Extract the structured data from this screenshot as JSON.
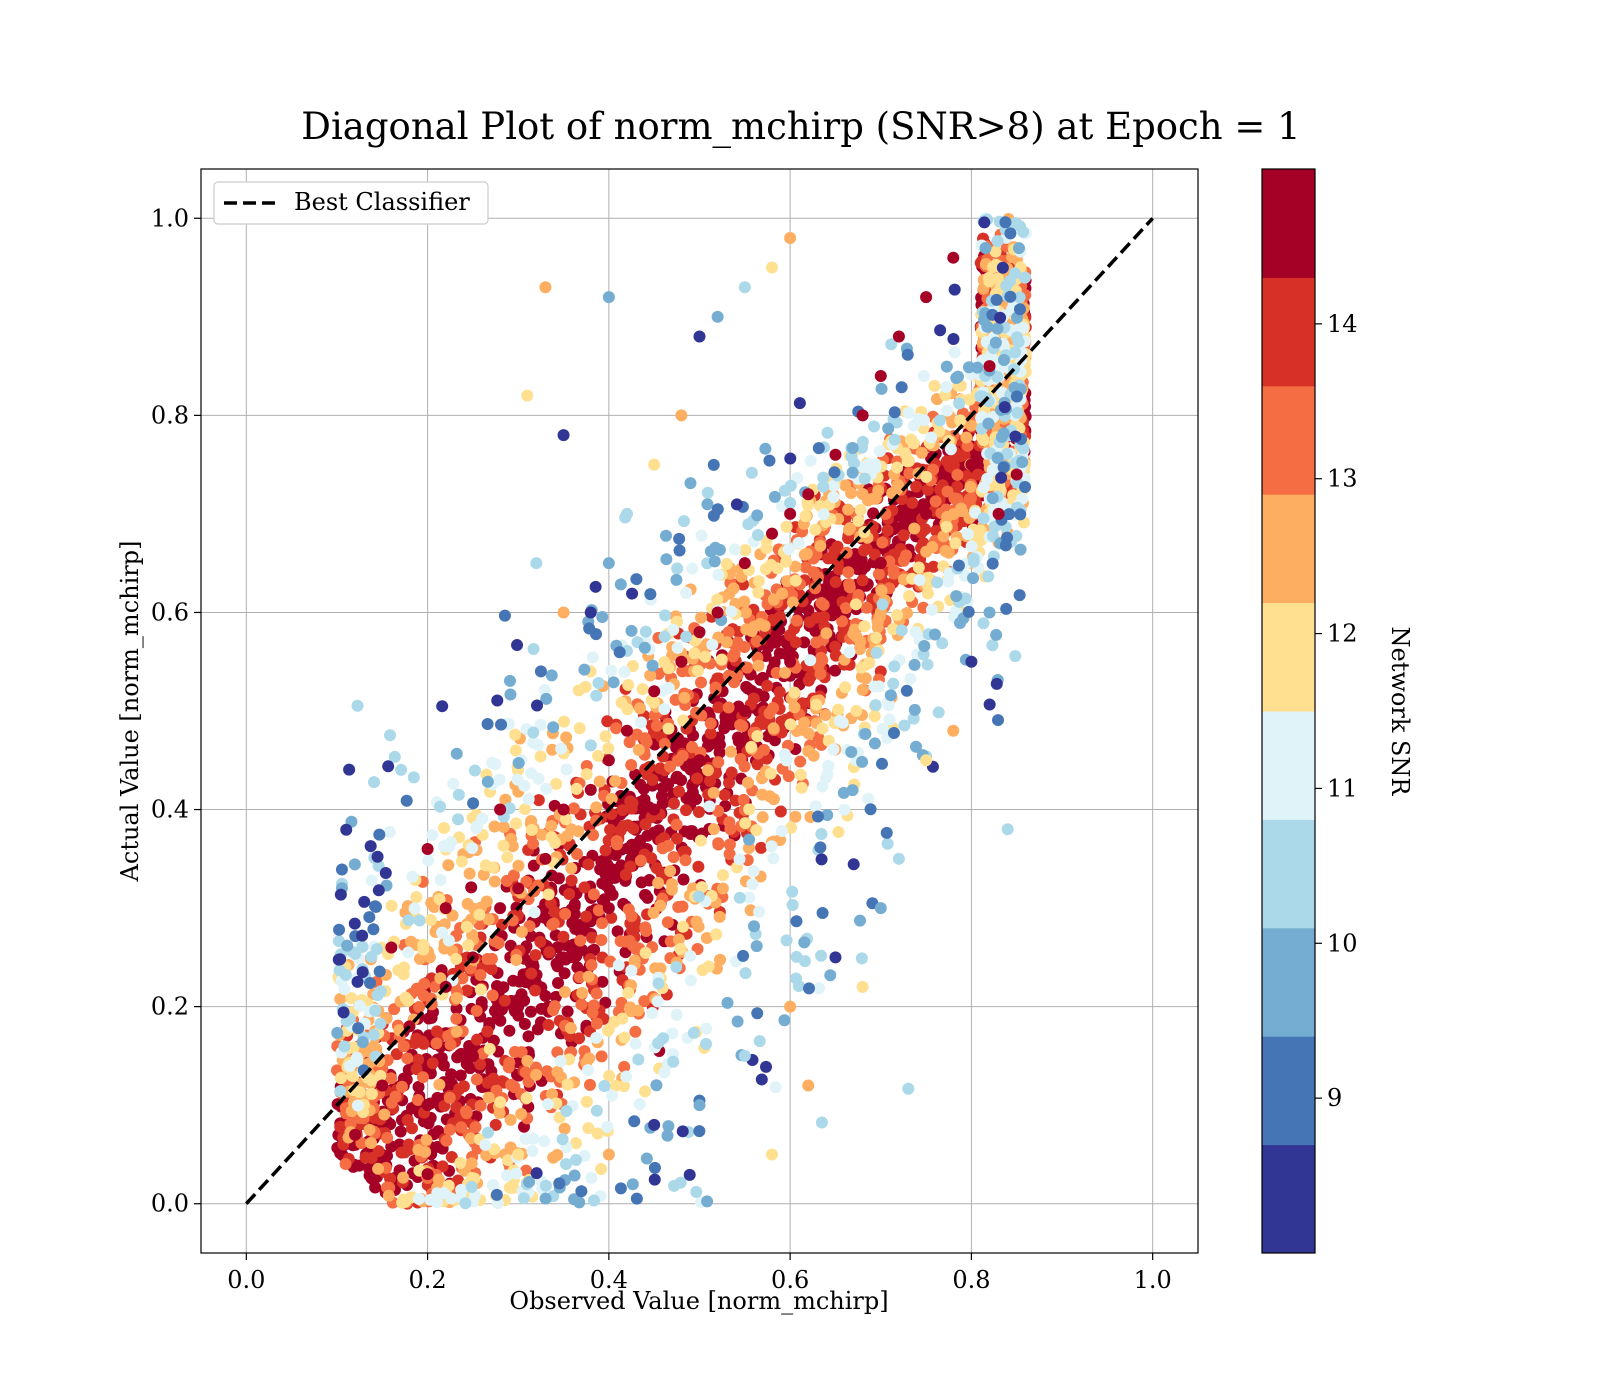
{
  "chart_data": {
    "type": "scatter",
    "title": "Diagonal Plot of norm_mchirp (SNR>8) at Epoch = 1",
    "xlabel": "Observed Value [norm_mchirp]",
    "ylabel": "Actual Value [norm_mchirp]",
    "xlim": [
      -0.05,
      1.05
    ],
    "ylim": [
      -0.05,
      1.05
    ],
    "xticks": [
      "0.0",
      "0.2",
      "0.4",
      "0.6",
      "0.8",
      "1.0"
    ],
    "yticks": [
      "0.0",
      "0.2",
      "0.4",
      "0.6",
      "0.8",
      "1.0"
    ],
    "grid": true,
    "legend": {
      "placement": "upper-left",
      "entries": [
        "Best Classifier"
      ]
    },
    "reference_line": {
      "name": "Best Classifier",
      "x": [
        0.0,
        1.0
      ],
      "y": [
        0.0,
        1.0
      ],
      "style": "dashed",
      "color": "#000000"
    },
    "colorbar": {
      "label": "Network SNR",
      "range": [
        8,
        15
      ],
      "ticks": [
        "9",
        "10",
        "11",
        "12",
        "13",
        "14"
      ],
      "colors": [
        "#313695",
        "#4575b4",
        "#74add1",
        "#abd9e9",
        "#e0f3f8",
        "#fee090",
        "#fdae61",
        "#f46d43",
        "#d73027",
        "#a50026"
      ]
    },
    "point_outline": [
      [
        0.1,
        0.02
      ],
      [
        0.38,
        0.0
      ],
      [
        0.6,
        0.03
      ],
      [
        0.85,
        0.4
      ],
      [
        0.85,
        0.8
      ],
      [
        0.78,
        1.0
      ],
      [
        0.5,
        0.98
      ],
      [
        0.3,
        0.6
      ],
      [
        0.1,
        0.12
      ]
    ],
    "points": [
      [
        0.12,
        0.07
      ],
      [
        0.15,
        0.12
      ],
      [
        0.18,
        0.18
      ],
      [
        0.2,
        0.1
      ],
      [
        0.22,
        0.22
      ],
      [
        0.25,
        0.15
      ],
      [
        0.25,
        0.25
      ],
      [
        0.28,
        0.3
      ],
      [
        0.3,
        0.2
      ],
      [
        0.3,
        0.32
      ],
      [
        0.33,
        0.35
      ],
      [
        0.35,
        0.25
      ],
      [
        0.35,
        0.4
      ],
      [
        0.38,
        0.42
      ],
      [
        0.4,
        0.3
      ],
      [
        0.4,
        0.45
      ],
      [
        0.42,
        0.48
      ],
      [
        0.45,
        0.4
      ],
      [
        0.45,
        0.52
      ],
      [
        0.48,
        0.55
      ],
      [
        0.5,
        0.45
      ],
      [
        0.5,
        0.58
      ],
      [
        0.52,
        0.6
      ],
      [
        0.55,
        0.5
      ],
      [
        0.55,
        0.65
      ],
      [
        0.58,
        0.68
      ],
      [
        0.6,
        0.55
      ],
      [
        0.6,
        0.7
      ],
      [
        0.62,
        0.72
      ],
      [
        0.65,
        0.6
      ],
      [
        0.65,
        0.76
      ],
      [
        0.68,
        0.8
      ],
      [
        0.7,
        0.65
      ],
      [
        0.7,
        0.84
      ],
      [
        0.72,
        0.88
      ],
      [
        0.75,
        0.7
      ],
      [
        0.75,
        0.92
      ],
      [
        0.78,
        0.96
      ],
      [
        0.8,
        0.75
      ],
      [
        0.82,
        0.85
      ],
      [
        0.83,
        0.7
      ],
      [
        0.85,
        0.74
      ],
      [
        0.2,
        0.03
      ],
      [
        0.3,
        0.05
      ],
      [
        0.4,
        0.05
      ],
      [
        0.45,
        0.08
      ],
      [
        0.5,
        0.1
      ],
      [
        0.55,
        0.15
      ],
      [
        0.58,
        0.05
      ],
      [
        0.6,
        0.2
      ],
      [
        0.65,
        0.25
      ],
      [
        0.7,
        0.3
      ],
      [
        0.72,
        0.35
      ],
      [
        0.75,
        0.45
      ],
      [
        0.78,
        0.48
      ],
      [
        0.8,
        0.55
      ],
      [
        0.82,
        0.6
      ],
      [
        0.84,
        0.38
      ],
      [
        0.68,
        0.22
      ],
      [
        0.62,
        0.12
      ],
      [
        0.38,
        0.6
      ],
      [
        0.4,
        0.65
      ],
      [
        0.42,
        0.7
      ],
      [
        0.45,
        0.75
      ],
      [
        0.48,
        0.8
      ],
      [
        0.5,
        0.88
      ],
      [
        0.52,
        0.9
      ],
      [
        0.55,
        0.93
      ],
      [
        0.58,
        0.95
      ],
      [
        0.6,
        0.98
      ],
      [
        0.35,
        0.78
      ],
      [
        0.4,
        0.92
      ],
      [
        0.32,
        0.65
      ],
      [
        0.31,
        0.82
      ],
      [
        0.35,
        0.6
      ],
      [
        0.28,
        0.4
      ],
      [
        0.2,
        0.36
      ],
      [
        0.16,
        0.26
      ],
      [
        0.22,
        0.3
      ],
      [
        0.33,
        0.93
      ]
    ]
  }
}
